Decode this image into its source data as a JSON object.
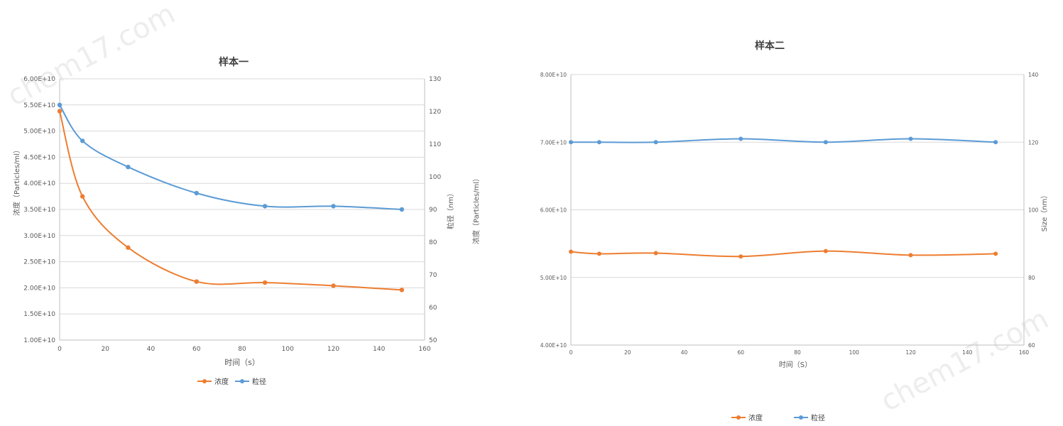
{
  "watermark": "chem17.com",
  "colors": {
    "concentration": "#ED7D31",
    "size": "#5B9BD5"
  },
  "chart_data": [
    {
      "type": "line",
      "title": "样本一",
      "xlabel": "时间（s）",
      "ylabel_left": "浓度（Particles/ml）",
      "ylabel_right": "粒径（nm）",
      "ylabel_right_extra": "浓度（Particles/ml）",
      "xlim": [
        0,
        160
      ],
      "x_ticks": [
        "0",
        "20",
        "40",
        "60",
        "80",
        "100",
        "120",
        "140",
        "160"
      ],
      "ylim_left": [
        10000000000.0,
        60000000000.0
      ],
      "y_ticks_left": [
        "1.00E+10",
        "1.50E+10",
        "2.00E+10",
        "2.50E+10",
        "3.00E+10",
        "3.50E+10",
        "4.00E+10",
        "4.50E+10",
        "5.00E+10",
        "5.50E+10",
        "6.00E+10"
      ],
      "ylim_right": [
        50,
        130
      ],
      "y_ticks_right": [
        "50",
        "60",
        "70",
        "80",
        "90",
        "100",
        "110",
        "120",
        "130"
      ],
      "legend_position": "bottom",
      "legend": [
        "浓度",
        "粒径"
      ],
      "x": [
        0,
        10,
        30,
        60,
        90,
        120,
        150
      ],
      "series": [
        {
          "name": "浓度",
          "axis": "left",
          "color": "#ED7D31",
          "values": [
            53800000000.0,
            37500000000.0,
            27700000000.0,
            21200000000.0,
            21000000000.0,
            20400000000.0,
            19600000000.0
          ]
        },
        {
          "name": "粒径",
          "axis": "right",
          "color": "#5B9BD5",
          "values": [
            122,
            111,
            103,
            95,
            91,
            91,
            90
          ]
        }
      ]
    },
    {
      "type": "line",
      "title": "样本二",
      "xlabel": "时间（S）",
      "ylabel_right": "Size（nm）",
      "xlim": [
        0,
        160
      ],
      "x_ticks": [
        "0",
        "20",
        "40",
        "60",
        "80",
        "100",
        "120",
        "140",
        "160"
      ],
      "ylim_left": [
        40000000000.0,
        80000000000.0
      ],
      "y_ticks_left": [
        "4.00E+10",
        "5.00E+10",
        "6.00E+10",
        "7.00E+10",
        "8.00E+10"
      ],
      "ylim_right": [
        60,
        140
      ],
      "y_ticks_right": [
        "60",
        "80",
        "100",
        "120",
        "140"
      ],
      "legend_position": "bottom",
      "legend": [
        "浓度",
        "粒径"
      ],
      "x": [
        0,
        10,
        30,
        60,
        90,
        120,
        150
      ],
      "series": [
        {
          "name": "浓度",
          "axis": "left",
          "color": "#ED7D31",
          "values": [
            53800000000.0,
            53500000000.0,
            53600000000.0,
            53100000000.0,
            53900000000.0,
            53300000000.0,
            53500000000.0
          ]
        },
        {
          "name": "粒径",
          "axis": "right",
          "color": "#5B9BD5",
          "values": [
            120,
            120,
            120,
            121,
            120,
            121,
            120
          ]
        }
      ]
    }
  ]
}
